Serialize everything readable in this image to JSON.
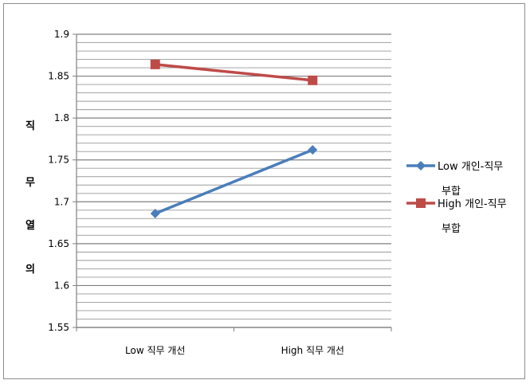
{
  "chart_data": {
    "type": "line",
    "title": "",
    "xlabel": "",
    "ylabel": "직무 열의",
    "ylabel_chars": [
      "직",
      "무",
      "열",
      "의"
    ],
    "categories": [
      "Low 직무 개선",
      "High 직무 개선"
    ],
    "ylim": [
      1.55,
      1.9
    ],
    "yticks": [
      "1.55",
      "1.6",
      "1.65",
      "1.7",
      "1.75",
      "1.8",
      "1.85",
      "1.9"
    ],
    "minor_step": 0.01,
    "grid": true,
    "legend_position": "right",
    "series": [
      {
        "name": "Low 개인-직무 부합",
        "name_lines": [
          "Low 개인-직무",
          "부합"
        ],
        "values": [
          1.686,
          1.762
        ],
        "color": "#4a7ebb",
        "marker": "diamond"
      },
      {
        "name": "High 개인-직무 부합",
        "name_lines": [
          "High 개인-직무",
          "부합"
        ],
        "values": [
          1.864,
          1.845
        ],
        "color": "#be4b48",
        "marker": "square"
      }
    ]
  }
}
